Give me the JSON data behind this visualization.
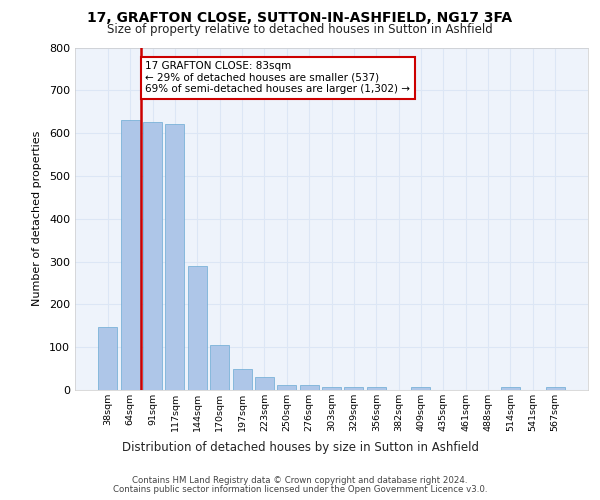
{
  "title": "17, GRAFTON CLOSE, SUTTON-IN-ASHFIELD, NG17 3FA",
  "subtitle": "Size of property relative to detached houses in Sutton in Ashfield",
  "xlabel": "Distribution of detached houses by size in Sutton in Ashfield",
  "ylabel": "Number of detached properties",
  "categories": [
    "38sqm",
    "64sqm",
    "91sqm",
    "117sqm",
    "144sqm",
    "170sqm",
    "197sqm",
    "223sqm",
    "250sqm",
    "276sqm",
    "303sqm",
    "329sqm",
    "356sqm",
    "382sqm",
    "409sqm",
    "435sqm",
    "461sqm",
    "488sqm",
    "514sqm",
    "541sqm",
    "567sqm"
  ],
  "values": [
    148,
    630,
    625,
    622,
    290,
    105,
    48,
    30,
    12,
    11,
    8,
    7,
    6,
    0,
    8,
    0,
    0,
    0,
    7,
    0,
    7
  ],
  "bar_color": "#aec6e8",
  "bar_edge_color": "#6aaad4",
  "highlight_line_color": "#cc0000",
  "annotation_text": "17 GRAFTON CLOSE: 83sqm\n← 29% of detached houses are smaller (537)\n69% of semi-detached houses are larger (1,302) →",
  "annotation_box_color": "#ffffff",
  "annotation_box_edge_color": "#cc0000",
  "ylim": [
    0,
    800
  ],
  "yticks": [
    0,
    100,
    200,
    300,
    400,
    500,
    600,
    700,
    800
  ],
  "grid_color": "#dce6f5",
  "background_color": "#eef3fb",
  "footer_line1": "Contains HM Land Registry data © Crown copyright and database right 2024.",
  "footer_line2": "Contains public sector information licensed under the Open Government Licence v3.0."
}
